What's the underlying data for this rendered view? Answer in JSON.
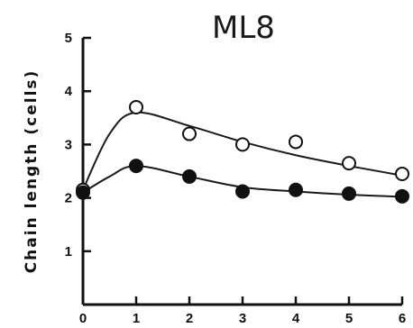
{
  "chart_data": {
    "type": "line",
    "title": "ML8",
    "xlabel": "",
    "ylabel": "Chain length (cells)",
    "xlim": [
      0,
      6
    ],
    "ylim": [
      0,
      5
    ],
    "x_ticks": [
      "0",
      "1",
      "2",
      "3",
      "4",
      "5",
      "6"
    ],
    "y_ticks": [
      "1",
      "2",
      "3",
      "4",
      "5"
    ],
    "grid": false,
    "series": [
      {
        "marker": "open-circle",
        "points": [
          [
            0,
            2.15
          ],
          [
            1,
            3.7
          ],
          [
            2,
            3.2
          ],
          [
            3,
            3.0
          ],
          [
            4,
            3.05
          ],
          [
            5,
            2.65
          ],
          [
            6,
            2.45
          ]
        ],
        "curve": [
          [
            0,
            2.15
          ],
          [
            0.5,
            3.2
          ],
          [
            1,
            3.6
          ],
          [
            2,
            3.35
          ],
          [
            3,
            3.05
          ],
          [
            4,
            2.8
          ],
          [
            5,
            2.6
          ],
          [
            6,
            2.42
          ]
        ]
      },
      {
        "marker": "filled-circle",
        "points": [
          [
            0,
            2.1
          ],
          [
            1,
            2.6
          ],
          [
            2,
            2.4
          ],
          [
            3,
            2.12
          ],
          [
            4,
            2.15
          ],
          [
            5,
            2.08
          ],
          [
            6,
            2.03
          ]
        ],
        "curve": [
          [
            0,
            2.1
          ],
          [
            0.5,
            2.4
          ],
          [
            1,
            2.6
          ],
          [
            2,
            2.4
          ],
          [
            3,
            2.2
          ],
          [
            4,
            2.12
          ],
          [
            5,
            2.06
          ],
          [
            6,
            2.02
          ]
        ]
      }
    ]
  }
}
